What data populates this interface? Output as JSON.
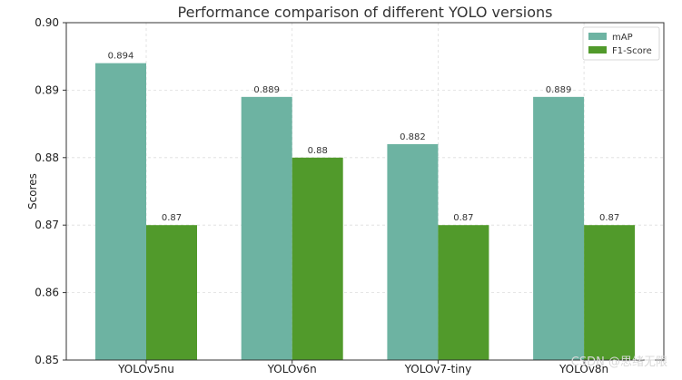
{
  "chart_data": {
    "type": "bar",
    "title": "Performance comparison of different YOLO versions",
    "xlabel": "",
    "ylabel": "Scores",
    "categories": [
      "YOLOv5nu",
      "YOLOv6n",
      "YOLOv7-tiny",
      "YOLOv8n"
    ],
    "series": [
      {
        "name": "mAP",
        "values": [
          0.894,
          0.889,
          0.882,
          0.889
        ],
        "labels": [
          "0.894",
          "0.889",
          "0.882",
          "0.889"
        ],
        "color": "#6db3a2"
      },
      {
        "name": "F1-Score",
        "values": [
          0.87,
          0.88,
          0.87,
          0.87
        ],
        "labels": [
          "0.87",
          "0.88",
          "0.87",
          "0.87"
        ],
        "color": "#519a2b"
      }
    ],
    "ylim": [
      0.85,
      0.9
    ],
    "yticks": [
      0.85,
      0.86,
      0.87,
      0.88,
      0.89,
      0.9
    ],
    "ytick_labels": [
      "0.85",
      "0.86",
      "0.87",
      "0.88",
      "0.89",
      "0.90"
    ],
    "grid": true,
    "legend_position": "top-right"
  },
  "watermark": "CSDN @思绪无限"
}
